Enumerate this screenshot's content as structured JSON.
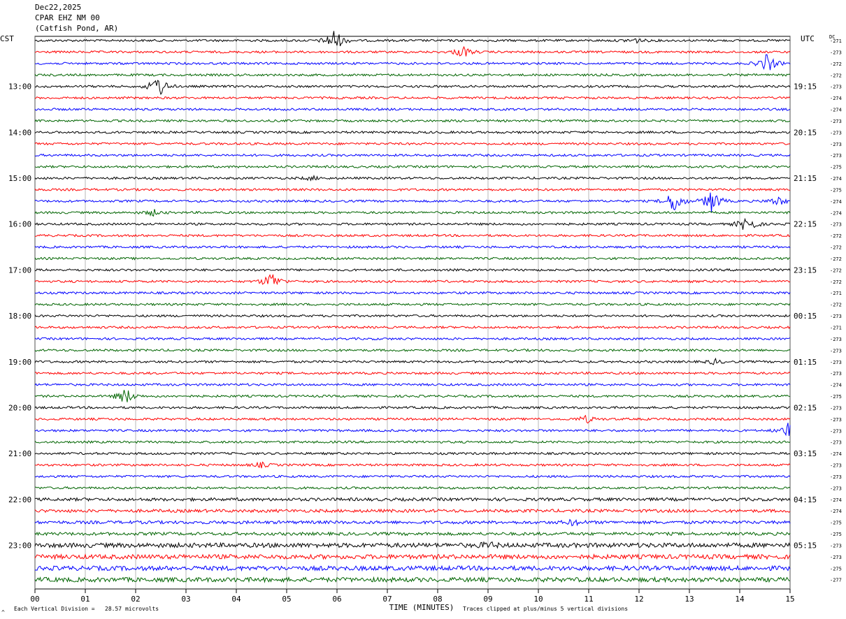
{
  "header": {
    "date": "Dec22,2025",
    "station": "CPAR EHZ NM 00",
    "location": "(Catfish Pond, AR)"
  },
  "labels": {
    "left_tz": "CST",
    "right_tz": "UTC",
    "dc_header": "DC"
  },
  "footer": {
    "scale_text": "Each Vertical Division =   28.57 microvolts",
    "clip_text": "Traces clipped at plus/minus 5 vertical divisions",
    "corner_mark": "^"
  },
  "colors": {
    "trace_cycle": [
      "#000000",
      "#ff0000",
      "#0000ff",
      "#006400"
    ],
    "grid": "#888888"
  },
  "chart_data": {
    "type": "line",
    "title": "CPAR EHZ NM 00 (Catfish Pond, AR) Dec22,2025",
    "xlabel": "TIME (MINUTES)",
    "ylabel": "",
    "xlim": [
      0,
      15
    ],
    "x_ticks": [
      "00",
      "01",
      "02",
      "03",
      "04",
      "05",
      "06",
      "07",
      "08",
      "09",
      "10",
      "11",
      "12",
      "13",
      "14",
      "15"
    ],
    "trace_count": 48,
    "minutes_per_trace": 15,
    "left_hour_labels": [
      "13:00",
      "14:00",
      "15:00",
      "16:00",
      "17:00",
      "18:00",
      "19:00",
      "20:00",
      "21:00",
      "22:00",
      "23:00"
    ],
    "right_hour_labels": [
      "19:15",
      "20:15",
      "21:15",
      "22:15",
      "23:15",
      "00:15",
      "01:15",
      "02:15",
      "03:15",
      "04:15",
      "05:15"
    ],
    "dc_offsets": [
      -271,
      -273,
      -272,
      -272,
      -273,
      -274,
      -274,
      -273,
      -273,
      -273,
      -273,
      -275,
      -274,
      -275,
      -274,
      -274,
      -273,
      -272,
      -272,
      -272,
      -272,
      -272,
      -271,
      -272,
      -273,
      -271,
      -273,
      -273,
      -273,
      -273,
      -274,
      -275,
      -273,
      -273,
      -273,
      -273,
      -274,
      -273,
      -273,
      -273,
      -274,
      -274,
      -275,
      -275,
      -273,
      -273,
      -275,
      -277
    ],
    "events": [
      {
        "trace": 0,
        "minute": 5.95,
        "amplitude": 5
      },
      {
        "trace": 0,
        "minute": 11.9,
        "amplitude": 1.2
      },
      {
        "trace": 1,
        "minute": 8.5,
        "amplitude": 2.5
      },
      {
        "trace": 2,
        "minute": 14.55,
        "amplitude": 4
      },
      {
        "trace": 4,
        "minute": 2.45,
        "amplitude": 5
      },
      {
        "trace": 12,
        "minute": 5.5,
        "amplitude": 0.8
      },
      {
        "trace": 14,
        "minute": 12.7,
        "amplitude": 5
      },
      {
        "trace": 14,
        "minute": 13.45,
        "amplitude": 5
      },
      {
        "trace": 14,
        "minute": 14.75,
        "amplitude": 2
      },
      {
        "trace": 15,
        "minute": 2.35,
        "amplitude": 1.2
      },
      {
        "trace": 16,
        "minute": 14.15,
        "amplitude": 4
      },
      {
        "trace": 21,
        "minute": 4.7,
        "amplitude": 4
      },
      {
        "trace": 28,
        "minute": 13.5,
        "amplitude": 1
      },
      {
        "trace": 31,
        "minute": 1.8,
        "amplitude": 3.5
      },
      {
        "trace": 33,
        "minute": 10.95,
        "amplitude": 1.5
      },
      {
        "trace": 34,
        "minute": 14.95,
        "amplitude": 3
      },
      {
        "trace": 37,
        "minute": 4.5,
        "amplitude": 1
      },
      {
        "trace": 42,
        "minute": 10.7,
        "amplitude": 1.2
      },
      {
        "trace": 44,
        "minute": 9.0,
        "amplitude": 1
      }
    ]
  }
}
